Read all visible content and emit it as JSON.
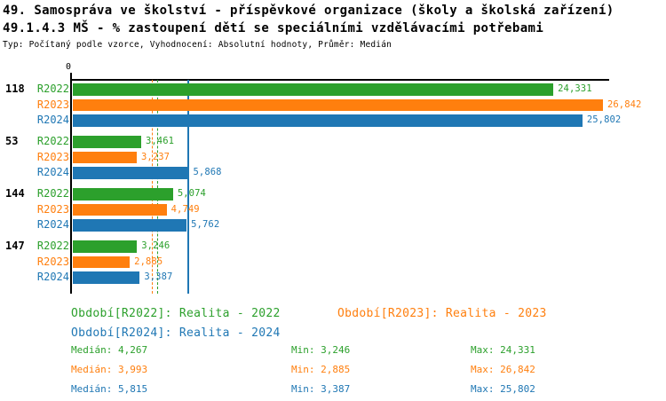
{
  "header": {
    "title_line1": "49. Samospráva ve školství - příspěvkové organizace (školy a školská zařízení)",
    "title_line2": "49.1.4.3 MŠ - % zastoupení dětí se speciálními vzdělávacími potřebami",
    "subtitle": "Typ: Počítaný podle vzorce, Vyhodnocení: Absolutní hodnoty, Průměr: Medián"
  },
  "chart_data": {
    "type": "bar",
    "orientation": "horizontal",
    "origin_tick_label": "0",
    "xlim": [
      0,
      27200
    ],
    "grid": false,
    "categories": [
      "118",
      "53",
      "144",
      "147"
    ],
    "series": [
      {
        "name": "R2022",
        "color": "#2ca02c",
        "values": [
          24331,
          3461,
          5074,
          3246
        ],
        "value_labels": [
          "24,331",
          "3,461",
          "5,074",
          "3,246"
        ],
        "median": 4267,
        "median_line_style": "dashed"
      },
      {
        "name": "R2023",
        "color": "#ff7f0e",
        "values": [
          26842,
          3237,
          4749,
          2885
        ],
        "value_labels": [
          "26,842",
          "3,237",
          "4,749",
          "2,885"
        ],
        "median": 3993,
        "median_line_style": "dashed"
      },
      {
        "name": "R2024",
        "color": "#1f77b4",
        "values": [
          25802,
          5868,
          5762,
          3387
        ],
        "value_labels": [
          "25,802",
          "5,868",
          "5,762",
          "3,387"
        ],
        "median": 5815,
        "median_line_style": "solid"
      }
    ]
  },
  "legend": {
    "r2022": {
      "label": "Období[R2022]: Realita - 2022",
      "color": "#2ca02c"
    },
    "r2023": {
      "label": "Období[R2023]: Realita - 2023",
      "color": "#ff7f0e"
    },
    "r2024": {
      "label": "Období[R2024]: Realita - 2024",
      "color": "#1f77b4"
    }
  },
  "stats": {
    "rows": [
      {
        "median": "Medián: 4,267",
        "min": "Min: 3,246",
        "max": "Max: 24,331",
        "color": "#2ca02c"
      },
      {
        "median": "Medián: 3,993",
        "min": "Min: 2,885",
        "max": "Max: 26,842",
        "color": "#ff7f0e"
      },
      {
        "median": "Medián: 5,815",
        "min": "Min: 3,387",
        "max": "Max: 25,802",
        "color": "#1f77b4"
      }
    ]
  }
}
